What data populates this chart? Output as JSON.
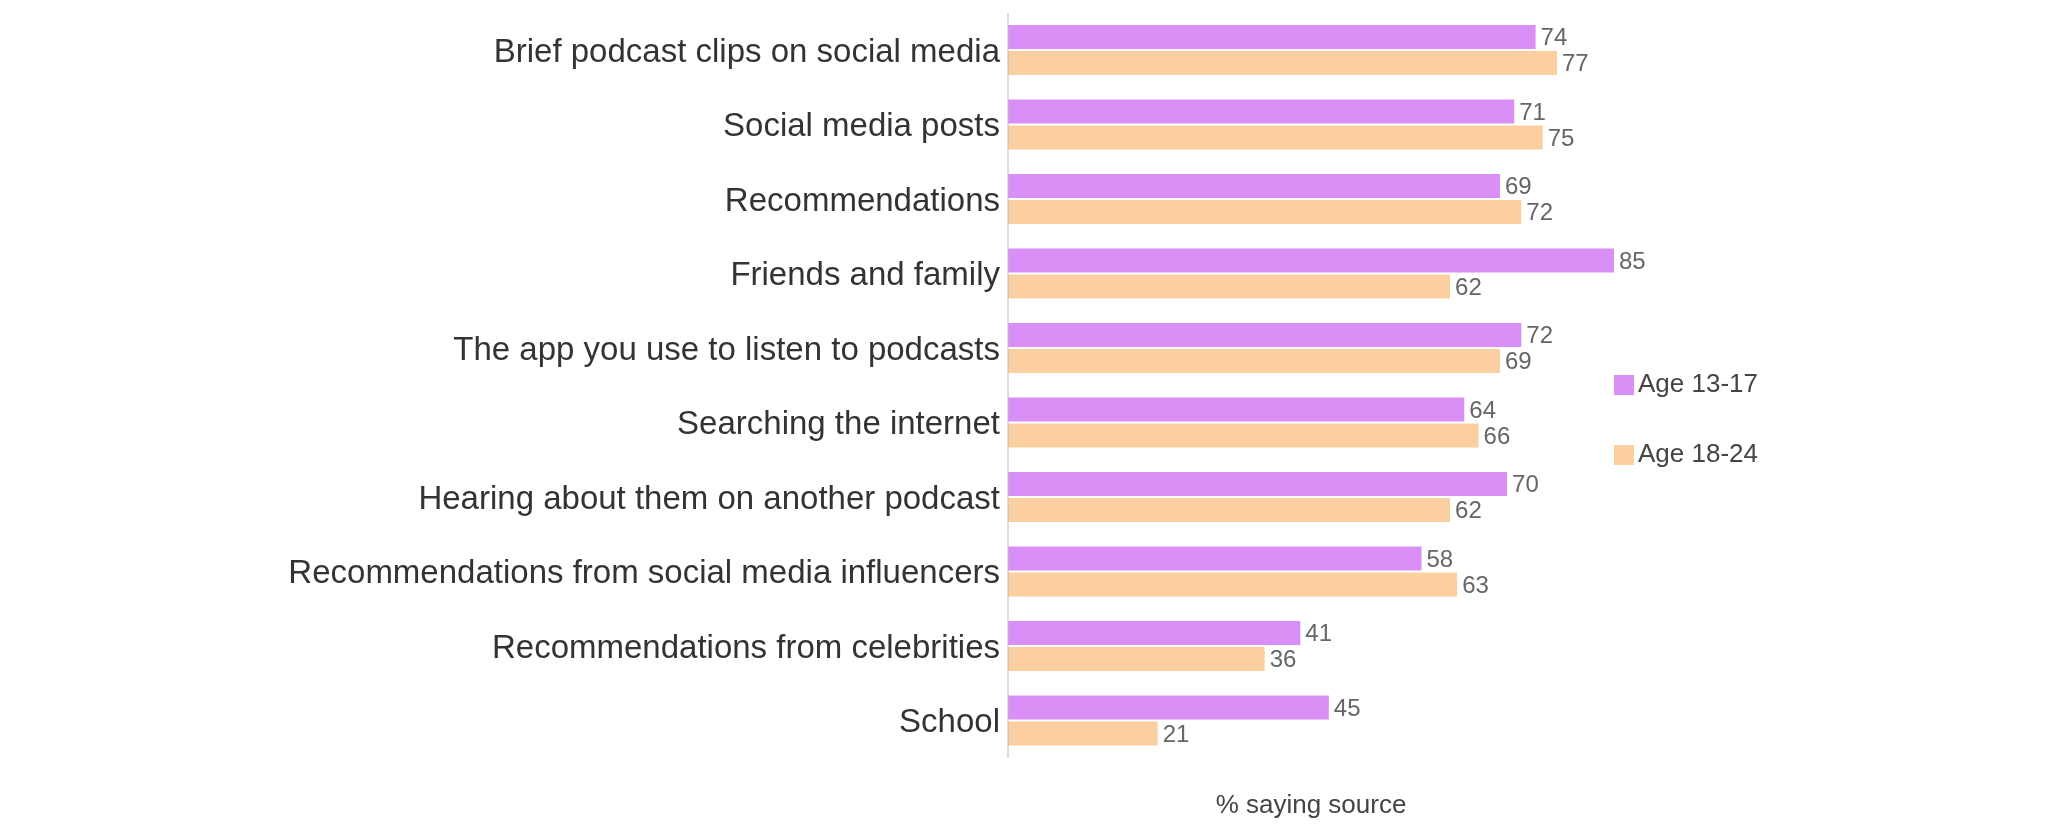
{
  "chart_data": {
    "type": "bar",
    "orientation": "horizontal",
    "xlabel": "% saying source",
    "categories": [
      "Brief podcast clips on social media",
      "Social media posts",
      "Recommendations",
      "Friends and family",
      "The app you use to listen to podcasts",
      "Searching the internet",
      "Hearing about them on another podcast",
      "Recommendations from social media influencers",
      "Recommendations from celebrities",
      "School"
    ],
    "series": [
      {
        "name": "Age 13-17",
        "color": "#d98ff5",
        "values": [
          74,
          71,
          69,
          85,
          72,
          64,
          70,
          58,
          41,
          45
        ]
      },
      {
        "name": "Age 18-24",
        "color": "#fbcf9f",
        "values": [
          77,
          75,
          72,
          62,
          69,
          66,
          62,
          63,
          36,
          21
        ]
      }
    ],
    "data_labels": true,
    "legend": "right",
    "grid": false
  }
}
